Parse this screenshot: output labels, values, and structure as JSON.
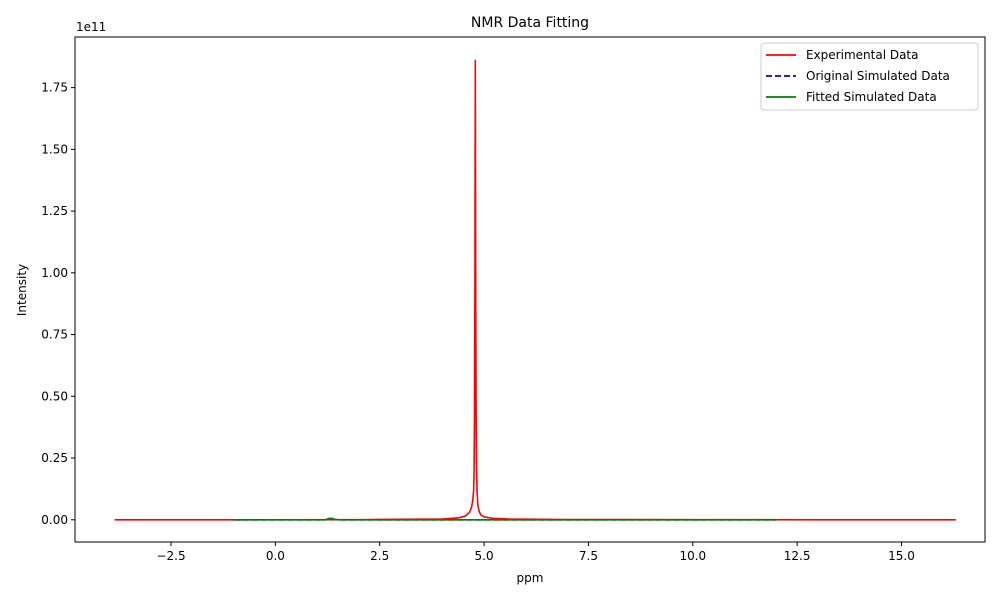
{
  "chart_data": {
    "type": "line",
    "title": "NMR Data Fitting",
    "xlabel": "ppm",
    "ylabel": "Intensity",
    "y_offset_label": "1e11",
    "xlim": [
      -4.8,
      17.0
    ],
    "ylim": [
      -0.09,
      1.955
    ],
    "y_scale_factor": 100000000000.0,
    "xticks": [
      -2.5,
      0.0,
      2.5,
      5.0,
      7.5,
      10.0,
      12.5,
      15.0
    ],
    "xtick_labels": [
      "−2.5",
      "0.0",
      "2.5",
      "5.0",
      "7.5",
      "10.0",
      "12.5",
      "15.0"
    ],
    "yticks": [
      0.0,
      0.25,
      0.5,
      0.75,
      1.0,
      1.25,
      1.5,
      1.75
    ],
    "ytick_labels": [
      "0.00",
      "0.25",
      "0.50",
      "0.75",
      "1.00",
      "1.25",
      "1.50",
      "1.75"
    ],
    "legend_position": "top-right",
    "grid": false,
    "series": [
      {
        "name": "Experimental Data",
        "color": "#ff0000",
        "dash": "solid",
        "x": [
          -3.85,
          -1.0,
          2.0,
          4.0,
          4.4,
          4.55,
          4.65,
          4.7,
          4.73,
          4.75,
          4.76,
          4.77,
          4.78,
          4.785,
          4.79,
          4.795,
          4.8,
          4.81,
          4.82,
          4.83,
          4.85,
          4.88,
          4.92,
          5.0,
          5.2,
          5.6,
          7.0,
          10.0,
          13.0,
          16.3
        ],
        "y": [
          0.0,
          0.0,
          0.0005,
          0.003,
          0.008,
          0.015,
          0.03,
          0.05,
          0.08,
          0.12,
          0.2,
          0.4,
          0.9,
          1.4,
          1.86,
          1.4,
          0.9,
          0.4,
          0.2,
          0.12,
          0.06,
          0.035,
          0.02,
          0.012,
          0.006,
          0.003,
          0.001,
          0.0005,
          0.0,
          0.0
        ]
      },
      {
        "name": "Original Simulated Data",
        "color": "#0000cc",
        "dash": "dashed",
        "x": [
          -1.0,
          1.2,
          1.28,
          1.3,
          1.32,
          1.36,
          1.4,
          1.5,
          4.0,
          8.0,
          12.0
        ],
        "y": [
          0.0,
          0.0,
          0.004,
          0.0065,
          0.004,
          0.006,
          0.002,
          0.0,
          0.0,
          0.0,
          0.0
        ]
      },
      {
        "name": "Fitted Simulated Data",
        "color": "#008000",
        "dash": "solid",
        "x": [
          -1.0,
          1.2,
          1.28,
          1.3,
          1.32,
          1.36,
          1.4,
          1.5,
          4.0,
          8.0,
          12.0
        ],
        "y": [
          0.0,
          0.0,
          0.004,
          0.0065,
          0.004,
          0.006,
          0.002,
          0.0,
          0.0,
          0.0,
          0.0
        ]
      }
    ]
  }
}
